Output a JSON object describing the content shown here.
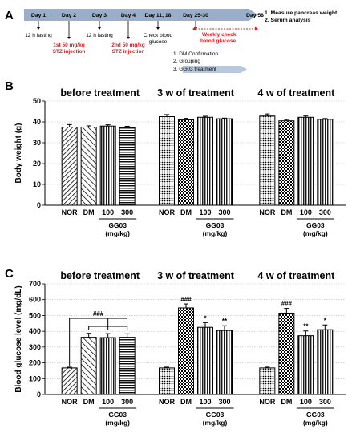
{
  "panel_a": {
    "label": "A",
    "days": [
      {
        "label": "Day 1",
        "note": "12 h fasting",
        "note_red": "",
        "note_red2": ""
      },
      {
        "label": "Day 2",
        "note": "",
        "note_red": "1st 50 mg/kg",
        "note_red2": "STZ injection"
      },
      {
        "label": "Day 3",
        "note": "12 h fasting",
        "note_red": "",
        "note_red2": ""
      },
      {
        "label": "Day 4",
        "note": "",
        "note_red": "2nd 50 mg/kg",
        "note_red2": "STZ injection"
      },
      {
        "label": "Day 11, 18",
        "note": "Check blood",
        "note2": "glucose",
        "note_red": "",
        "note_red2": ""
      },
      {
        "label": "Day 25-30",
        "note": "",
        "note_red": "",
        "note_red2": ""
      },
      {
        "label": "Day 58",
        "note": "",
        "note_red": "",
        "note_red2": ""
      }
    ],
    "weekly_check": [
      "Weekly check",
      "blood glucose"
    ],
    "steps": [
      "1.  DM Confirmation",
      "2.  Grouping",
      "3.  GG03 treatment"
    ],
    "endpoints": [
      "1.  Measure pancreas weight",
      "2.  Serum analysis"
    ]
  },
  "groups_label": [
    "GG03",
    "(mg/kg)"
  ],
  "chart_data": [
    {
      "panel": "B",
      "type": "bar",
      "ylabel": "Body weight (g)",
      "ylim": [
        0,
        50
      ],
      "yticks": [
        0,
        10,
        20,
        30,
        40,
        50
      ],
      "grid": true,
      "subgroups": [
        {
          "title": "before treatment",
          "categories": [
            "NOR",
            "DM",
            "100",
            "300"
          ],
          "values": [
            37.5,
            37.5,
            38,
            37.5
          ],
          "errors": [
            1.2,
            0.6,
            0.6,
            0.4
          ],
          "annotations": [
            "",
            "",
            "",
            ""
          ]
        },
        {
          "title": "3 w of treatment",
          "categories": [
            "NOR",
            "DM",
            "100",
            "300"
          ],
          "values": [
            42.5,
            41,
            42.2,
            41.5
          ],
          "errors": [
            1.0,
            0.7,
            0.5,
            0.3
          ],
          "annotations": [
            "",
            "",
            "",
            ""
          ]
        },
        {
          "title": "4 w of treatment",
          "categories": [
            "NOR",
            "DM",
            "100",
            "300"
          ],
          "values": [
            42.8,
            40.5,
            42.2,
            41.2
          ],
          "errors": [
            1.0,
            0.6,
            0.6,
            0.4
          ],
          "annotations": [
            "",
            "",
            "",
            ""
          ]
        }
      ]
    },
    {
      "panel": "C",
      "type": "bar",
      "ylabel": "Blood glucose level (mg/dL)",
      "ylim": [
        0,
        700
      ],
      "yticks": [
        0,
        100,
        200,
        300,
        400,
        500,
        600,
        700
      ],
      "grid": true,
      "bracket_label": "###",
      "subgroups": [
        {
          "title": "before treatment",
          "categories": [
            "NOR",
            "DM",
            "100",
            "300"
          ],
          "values": [
            168,
            362,
            360,
            362
          ],
          "errors": [
            5,
            25,
            25,
            22
          ],
          "annotations": [
            "",
            "",
            "",
            ""
          ]
        },
        {
          "title": "3 w of treatment",
          "categories": [
            "NOR",
            "DM",
            "100",
            "300"
          ],
          "values": [
            168,
            548,
            425,
            405
          ],
          "errors": [
            5,
            25,
            30,
            30
          ],
          "annotations": [
            "",
            "###",
            "*",
            "**"
          ]
        },
        {
          "title": "4 w of treatment",
          "categories": [
            "NOR",
            "DM",
            "100",
            "300"
          ],
          "values": [
            168,
            515,
            372,
            410
          ],
          "errors": [
            5,
            30,
            30,
            30
          ],
          "annotations": [
            "",
            "###",
            "**",
            "*"
          ]
        }
      ]
    }
  ]
}
